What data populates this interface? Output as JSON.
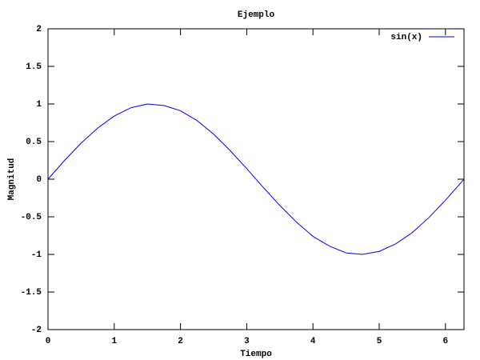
{
  "chart_data": {
    "type": "line",
    "title": "Ejemplo",
    "x_label": "Tiempo",
    "y_label": "Magnitud",
    "x": [
      0,
      0.25,
      0.5,
      0.75,
      1,
      1.25,
      1.5,
      1.75,
      2,
      2.25,
      2.5,
      2.75,
      3,
      3.25,
      3.5,
      3.75,
      4,
      4.25,
      4.5,
      4.75,
      5,
      5.25,
      5.5,
      5.75,
      6,
      6.25,
      6.28
    ],
    "series": [
      {
        "name": "sin(x)",
        "color": "#0000ff",
        "values": [
          0,
          0.25,
          0.48,
          0.68,
          0.84,
          0.95,
          1.0,
          0.98,
          0.91,
          0.78,
          0.6,
          0.38,
          0.14,
          -0.11,
          -0.35,
          -0.57,
          -0.76,
          -0.89,
          -0.98,
          -1.0,
          -0.96,
          -0.86,
          -0.71,
          -0.51,
          -0.28,
          -0.03,
          0
        ]
      }
    ],
    "xlim": [
      0,
      6.28
    ],
    "xticks": [
      0,
      1,
      2,
      3,
      4,
      5,
      6
    ],
    "ylim": [
      -2,
      2
    ],
    "yticks": [
      -2,
      -1.5,
      -1,
      -0.5,
      0,
      0.5,
      1,
      1.5,
      2
    ],
    "grid": false,
    "legend": "top-right"
  }
}
